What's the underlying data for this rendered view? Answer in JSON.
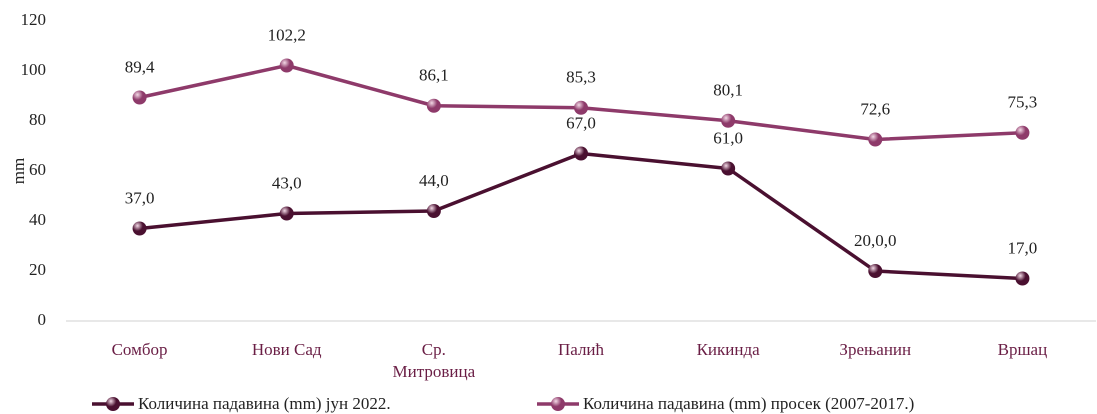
{
  "chart_data": {
    "type": "line",
    "ylabel": "mm",
    "categories": [
      "Сомбор",
      "Нови Сад",
      "Ср. Митровица",
      "Палић",
      "Кикинда",
      "Зрењанин",
      "Вршац"
    ],
    "series": [
      {
        "name": "Количина падавина (mm) јун 2022.",
        "color": "#4a1030",
        "values": [
          37.0,
          43.0,
          44.0,
          67.0,
          61.0,
          20.0,
          17.0
        ],
        "value_labels": [
          "37,0",
          "43,0",
          "44,0",
          "67,0",
          "61,0",
          "20,0,0",
          "17,0"
        ]
      },
      {
        "name": "Количина падавина (mm) просек (2007-2017.)",
        "color": "#8e3a6a",
        "values": [
          89.4,
          102.2,
          86.1,
          85.3,
          80.1,
          72.6,
          75.3
        ],
        "value_labels": [
          "89,4",
          "102,2",
          "86,1",
          "85,3",
          "80,1",
          "72,6",
          "75,3"
        ]
      }
    ],
    "ylim": [
      0,
      120
    ],
    "yticks": [
      0,
      20,
      40,
      60,
      80,
      100,
      120
    ],
    "grid": false,
    "legend": "bottom"
  }
}
